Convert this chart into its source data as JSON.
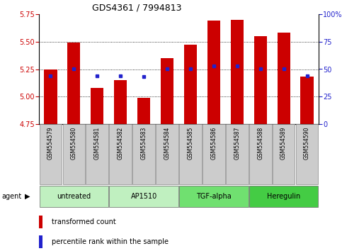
{
  "title": "GDS4361 / 7994813",
  "samples": [
    "GSM554579",
    "GSM554580",
    "GSM554581",
    "GSM554582",
    "GSM554583",
    "GSM554584",
    "GSM554585",
    "GSM554586",
    "GSM554587",
    "GSM554588",
    "GSM554589",
    "GSM554590"
  ],
  "red_values": [
    5.25,
    5.49,
    5.08,
    5.15,
    4.99,
    5.35,
    5.47,
    5.69,
    5.7,
    5.55,
    5.58,
    5.18
  ],
  "blue_percentiles": [
    44,
    50,
    44,
    44,
    43,
    50,
    50,
    53,
    53,
    50,
    50,
    44
  ],
  "ylim_left": [
    4.75,
    5.75
  ],
  "ylim_right": [
    0,
    100
  ],
  "yticks_left": [
    4.75,
    5.0,
    5.25,
    5.5,
    5.75
  ],
  "yticks_right": [
    0,
    25,
    50,
    75,
    100
  ],
  "ytick_labels_right": [
    "0",
    "25",
    "50",
    "75",
    "100%"
  ],
  "grid_lines": [
    5.0,
    5.25,
    5.5
  ],
  "groups": [
    {
      "label": "untreated",
      "start": 0,
      "end": 2
    },
    {
      "label": "AP1510",
      "start": 3,
      "end": 5
    },
    {
      "label": "TGF-alpha",
      "start": 6,
      "end": 8
    },
    {
      "label": "Heregulin",
      "start": 9,
      "end": 11
    }
  ],
  "group_colors": {
    "untreated": "#c0f0c0",
    "AP1510": "#c0f0c0",
    "TGF-alpha": "#70e070",
    "Heregulin": "#44cc44"
  },
  "bar_color": "#cc0000",
  "dot_color": "#2222cc",
  "baseline": 4.75,
  "bg_xtick": "#cccccc",
  "fig_width": 4.83,
  "fig_height": 3.54,
  "dpi": 100
}
